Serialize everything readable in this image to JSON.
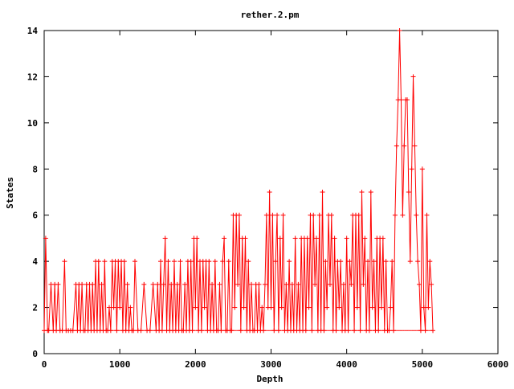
{
  "chart_data": {
    "type": "line",
    "title": "rether.2.pm",
    "xlabel": "Depth",
    "ylabel": "States",
    "xlim": [
      0,
      6000
    ],
    "ylim": [
      0,
      14
    ],
    "x_ticks": [
      0,
      1000,
      2000,
      3000,
      4000,
      5000,
      6000
    ],
    "y_ticks": [
      0,
      2,
      4,
      6,
      8,
      10,
      12,
      14
    ],
    "x_tick_labels": [
      "0",
      "1000",
      "2000",
      "3000",
      "4000",
      "5000",
      "6000"
    ],
    "y_tick_labels": [
      "0",
      "2",
      "4",
      "6",
      "8",
      "10",
      "12",
      "14"
    ],
    "grid": false,
    "legend": "none",
    "line_color": "#ff0000",
    "marker": "plus",
    "series": [
      {
        "x": [
          0,
          20,
          45,
          60,
          90,
          120,
          140,
          160,
          185,
          210,
          240,
          270,
          290,
          320,
          350,
          380,
          420,
          440,
          460,
          480,
          500,
          520,
          540,
          560,
          580,
          600,
          620,
          640,
          660,
          680,
          700,
          720,
          740,
          760,
          780,
          800,
          820,
          840,
          860,
          880,
          900,
          920,
          940,
          960,
          980,
          1000,
          1020,
          1040,
          1060,
          1080,
          1100,
          1120,
          1140,
          1160,
          1180,
          1200,
          1240,
          1280,
          1320,
          1360,
          1400,
          1440,
          1480,
          1500,
          1520,
          1540,
          1560,
          1580,
          1600,
          1620,
          1640,
          1660,
          1680,
          1700,
          1720,
          1740,
          1760,
          1780,
          1800,
          1820,
          1840,
          1860,
          1880,
          1900,
          1920,
          1940,
          1960,
          1980,
          2000,
          2020,
          2040,
          2060,
          2080,
          2100,
          2120,
          2140,
          2160,
          2180,
          2200,
          2220,
          2240,
          2260,
          2280,
          2300,
          2320,
          2340,
          2360,
          2380,
          2400,
          2420,
          2440,
          2460,
          2480,
          2500,
          2520,
          2540,
          2560,
          2580,
          2600,
          2620,
          2640,
          2660,
          2680,
          2700,
          2720,
          2740,
          2760,
          2780,
          2800,
          2820,
          2840,
          2860,
          2880,
          2900,
          2920,
          2940,
          2960,
          2980,
          3000,
          3020,
          3040,
          3060,
          3080,
          3100,
          3120,
          3140,
          3160,
          3180,
          3200,
          3220,
          3240,
          3260,
          3280,
          3300,
          3320,
          3340,
          3360,
          3380,
          3400,
          3420,
          3440,
          3460,
          3480,
          3500,
          3520,
          3540,
          3560,
          3580,
          3600,
          3620,
          3640,
          3660,
          3680,
          3700,
          3720,
          3740,
          3760,
          3780,
          3800,
          3820,
          3840,
          3860,
          3880,
          3900,
          3920,
          3940,
          3960,
          3980,
          4000,
          4020,
          4040,
          4060,
          4080,
          4100,
          4120,
          4140,
          4160,
          4180,
          4200,
          4220,
          4240,
          4260,
          4280,
          4300,
          4320,
          4340,
          4360,
          4380,
          4400,
          4420,
          4440,
          4460,
          4480,
          4500,
          4520,
          4540,
          4560,
          4580,
          4600,
          4620,
          4640,
          4660,
          4680,
          4700,
          4720,
          4740,
          4760,
          4780,
          4800,
          4820,
          4840,
          4860,
          4880,
          4900,
          4920,
          4940,
          4960,
          4980,
          5000,
          5020,
          5040,
          5060,
          5080,
          5100,
          5120,
          5140
        ],
        "y": [
          1,
          5,
          1,
          1,
          3,
          1,
          3,
          1,
          3,
          1,
          1,
          4,
          1,
          1,
          1,
          1,
          3,
          1,
          3,
          1,
          3,
          1,
          1,
          3,
          1,
          3,
          1,
          3,
          1,
          4,
          1,
          4,
          1,
          3,
          1,
          4,
          1,
          1,
          2,
          1,
          4,
          2,
          4,
          1,
          4,
          2,
          4,
          1,
          4,
          1,
          3,
          1,
          2,
          1,
          1,
          4,
          1,
          1,
          3,
          1,
          1,
          3,
          1,
          3,
          1,
          4,
          1,
          3,
          5,
          1,
          4,
          1,
          3,
          1,
          4,
          1,
          3,
          1,
          4,
          1,
          1,
          3,
          1,
          4,
          1,
          4,
          1,
          5,
          2,
          5,
          1,
          4,
          1,
          4,
          2,
          4,
          1,
          4,
          1,
          3,
          1,
          4,
          1,
          1,
          3,
          1,
          4,
          5,
          1,
          1,
          4,
          1,
          1,
          6,
          2,
          6,
          3,
          6,
          1,
          5,
          2,
          5,
          1,
          4,
          1,
          3,
          1,
          1,
          3,
          1,
          3,
          1,
          2,
          1,
          3,
          6,
          2,
          7,
          2,
          6,
          1,
          4,
          6,
          1,
          5,
          2,
          6,
          1,
          3,
          1,
          4,
          1,
          3,
          1,
          5,
          1,
          3,
          1,
          5,
          1,
          5,
          1,
          5,
          2,
          6,
          1,
          6,
          3,
          5,
          1,
          6,
          1,
          7,
          1,
          4,
          2,
          6,
          3,
          6,
          1,
          5,
          1,
          4,
          2,
          4,
          1,
          3,
          1,
          5,
          1,
          4,
          3,
          6,
          1,
          6,
          2,
          6,
          1,
          7,
          3,
          5,
          1,
          4,
          1,
          7,
          2,
          4,
          1,
          5,
          1,
          5,
          2,
          5,
          1,
          4,
          1,
          1,
          2,
          4,
          1,
          6,
          9,
          11,
          14,
          11,
          6,
          9,
          11,
          11,
          7,
          4,
          8,
          12,
          9,
          6,
          4,
          3,
          1,
          8,
          2,
          1,
          6,
          2,
          4,
          3,
          1
        ],
        "markers_plotted": "upward-and-downward jumps between 1 and the local peak value at each depth step"
      }
    ]
  }
}
